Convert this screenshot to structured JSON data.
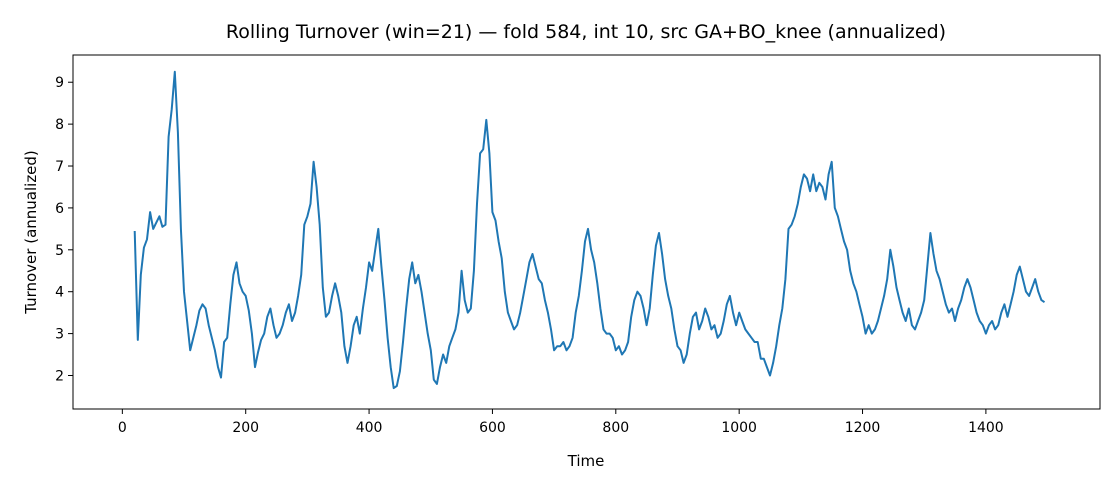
{
  "chart_data": {
    "type": "line",
    "title": "Rolling Turnover (win=21) — fold 584, int 10, src GA+BO_knee (annualized)",
    "xlabel": "Time",
    "ylabel": "Turnover (annualized)",
    "xlim": [
      -80,
      1585
    ],
    "ylim": [
      1.2,
      9.65
    ],
    "x_ticks": [
      0,
      200,
      400,
      600,
      800,
      1000,
      1200,
      1400
    ],
    "y_ticks": [
      2,
      3,
      4,
      5,
      6,
      7,
      8,
      9
    ],
    "grid": false,
    "legend": "none",
    "line_color": "#1f77b4",
    "series": [
      {
        "x_start": 20,
        "x_step": 5,
        "values": [
          5.45,
          2.85,
          4.4,
          5.05,
          5.25,
          5.9,
          5.5,
          5.65,
          5.8,
          5.55,
          5.6,
          7.7,
          8.35,
          9.25,
          7.8,
          5.5,
          4.0,
          3.3,
          2.6,
          2.9,
          3.2,
          3.55,
          3.7,
          3.6,
          3.2,
          2.9,
          2.6,
          2.2,
          1.95,
          2.8,
          2.9,
          3.7,
          4.4,
          4.7,
          4.2,
          4.0,
          3.9,
          3.55,
          3.0,
          2.2,
          2.55,
          2.85,
          3.0,
          3.4,
          3.6,
          3.2,
          2.9,
          3.0,
          3.2,
          3.5,
          3.7,
          3.3,
          3.5,
          3.9,
          4.4,
          5.6,
          5.8,
          6.1,
          7.1,
          6.5,
          5.6,
          4.1,
          3.4,
          3.5,
          3.9,
          4.2,
          3.9,
          3.5,
          2.7,
          2.3,
          2.7,
          3.2,
          3.4,
          3.0,
          3.6,
          4.1,
          4.7,
          4.5,
          5.0,
          5.5,
          4.6,
          3.8,
          2.9,
          2.2,
          1.7,
          1.75,
          2.1,
          2.8,
          3.6,
          4.3,
          4.7,
          4.2,
          4.4,
          4.0,
          3.5,
          3.0,
          2.6,
          1.9,
          1.8,
          2.2,
          2.5,
          2.3,
          2.7,
          2.9,
          3.1,
          3.5,
          4.5,
          3.8,
          3.5,
          3.6,
          4.5,
          6.1,
          7.3,
          7.4,
          8.1,
          7.3,
          5.9,
          5.7,
          5.2,
          4.8,
          4.0,
          3.5,
          3.3,
          3.1,
          3.2,
          3.5,
          3.9,
          4.3,
          4.7,
          4.9,
          4.6,
          4.3,
          4.2,
          3.8,
          3.5,
          3.1,
          2.6,
          2.7,
          2.7,
          2.8,
          2.6,
          2.7,
          2.9,
          3.5,
          3.9,
          4.5,
          5.2,
          5.5,
          5.0,
          4.7,
          4.2,
          3.6,
          3.1,
          3.0,
          3.0,
          2.9,
          2.6,
          2.7,
          2.5,
          2.6,
          2.8,
          3.4,
          3.8,
          4.0,
          3.9,
          3.6,
          3.2,
          3.6,
          4.4,
          5.1,
          5.4,
          4.9,
          4.3,
          3.9,
          3.6,
          3.1,
          2.7,
          2.6,
          2.3,
          2.5,
          3.0,
          3.4,
          3.5,
          3.1,
          3.3,
          3.6,
          3.4,
          3.1,
          3.2,
          2.9,
          3.0,
          3.3,
          3.7,
          3.9,
          3.5,
          3.2,
          3.5,
          3.3,
          3.1,
          3.0,
          2.9,
          2.8,
          2.8,
          2.4,
          2.4,
          2.2,
          2.0,
          2.3,
          2.7,
          3.2,
          3.6,
          4.3,
          5.5,
          5.6,
          5.8,
          6.1,
          6.5,
          6.8,
          6.7,
          6.4,
          6.8,
          6.4,
          6.6,
          6.5,
          6.2,
          6.8,
          7.1,
          6.0,
          5.8,
          5.5,
          5.2,
          5.0,
          4.5,
          4.2,
          4.0,
          3.7,
          3.4,
          3.0,
          3.2,
          3.0,
          3.1,
          3.3,
          3.6,
          3.9,
          4.3,
          5.0,
          4.6,
          4.1,
          3.8,
          3.5,
          3.3,
          3.6,
          3.2,
          3.1,
          3.3,
          3.5,
          3.8,
          4.6,
          5.4,
          4.9,
          4.5,
          4.3,
          4.0,
          3.7,
          3.5,
          3.6,
          3.3,
          3.6,
          3.8,
          4.1,
          4.3,
          4.1,
          3.8,
          3.5,
          3.3,
          3.2,
          3.0,
          3.2,
          3.3,
          3.1,
          3.2,
          3.5,
          3.7,
          3.4,
          3.7,
          4.0,
          4.4,
          4.6,
          4.3,
          4.0,
          3.9,
          4.1,
          4.3,
          4.0,
          3.8,
          3.75
        ]
      }
    ]
  }
}
